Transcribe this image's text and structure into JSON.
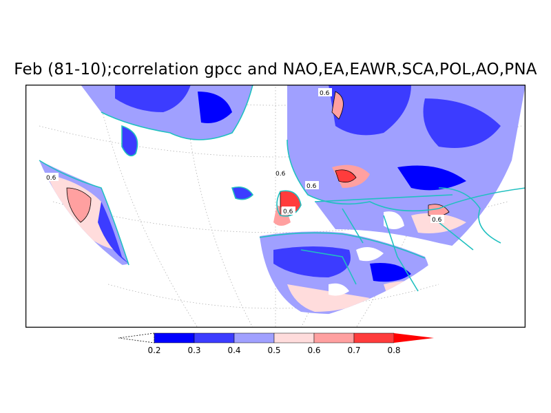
{
  "title": "Feb (81-10);correlation gpcc and NAO,EA,EAWR,SCA,POL,AO,PNA",
  "map": {
    "contour_labels": [
      "0.6",
      "0.6",
      "0.6",
      "0.6",
      "0.6",
      "0.6"
    ],
    "coastline_color": "#20c0c0",
    "graticule": "dotted"
  },
  "colorbar": {
    "tick_labels": [
      "0.2",
      "0.3",
      "0.4",
      "0.5",
      "0.6",
      "0.7",
      "0.8"
    ],
    "colors": [
      "#0000ff",
      "#3c3cff",
      "#a0a0ff",
      "#ffdcdc",
      "#ffa0a0",
      "#ff3c3c",
      "#ff0000"
    ],
    "below_range": "white"
  }
}
